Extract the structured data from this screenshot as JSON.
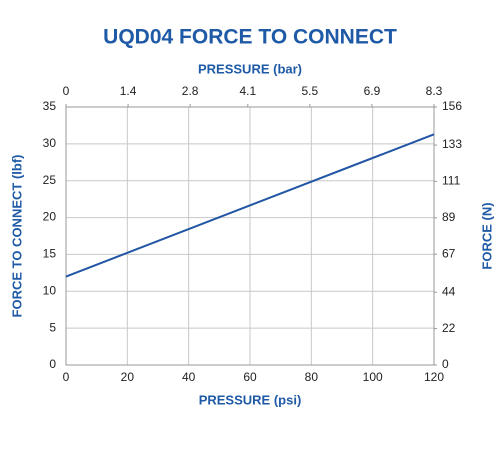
{
  "chart_data": {
    "type": "line",
    "title": "UQD04 FORCE TO CONNECT",
    "x_label": "PRESSURE (psi)",
    "x2_label": "PRESSURE (bar)",
    "y_label": "FORCE TO CONNECT (lbf)",
    "y2_label": "FORCE (N)",
    "x": [
      0,
      120
    ],
    "values": [
      12,
      31.3
    ],
    "color": "#2255a4",
    "xlim": [
      0,
      120
    ],
    "xticks": [
      0,
      20,
      40,
      60,
      80,
      100,
      120
    ],
    "x2lim": [
      0,
      8.3
    ],
    "x2ticks": [
      0,
      1.4,
      2.8,
      4.1,
      5.5,
      6.9,
      8.3
    ],
    "ylim": [
      0,
      35
    ],
    "yticks": [
      0,
      5,
      10,
      15,
      20,
      25,
      30,
      35
    ],
    "y2lim": [
      0,
      156
    ],
    "y2ticks": [
      0,
      22,
      44,
      67,
      89,
      111,
      133,
      156
    ],
    "grid": true
  }
}
